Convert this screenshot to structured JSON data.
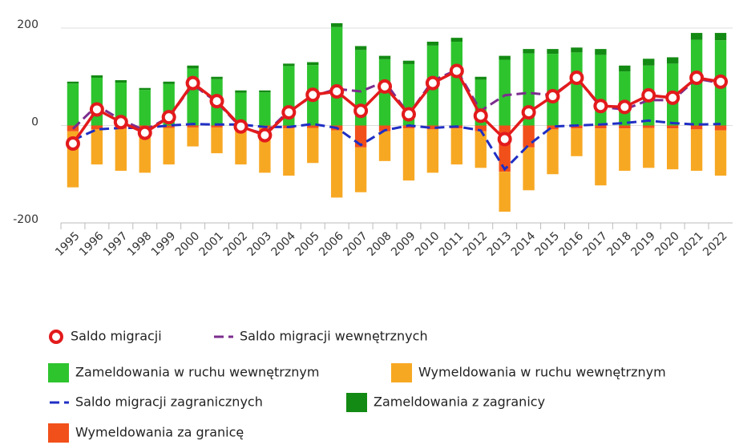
{
  "chart_data": {
    "type": "bar",
    "categories": [
      "1995",
      "1996",
      "1997",
      "1998",
      "1999",
      "2000",
      "2001",
      "2002",
      "2003",
      "2004",
      "2005",
      "2006",
      "2007",
      "2008",
      "2009",
      "2010",
      "2011",
      "2012",
      "2013",
      "2014",
      "2015",
      "2016",
      "2017",
      "2018",
      "2019",
      "2020",
      "2021",
      "2022"
    ],
    "ylim": [
      -200,
      200
    ],
    "yticks": [
      -200,
      0,
      200
    ],
    "grid": true,
    "series": [
      {
        "name": "Saldo migracji",
        "type": "line",
        "marker": "circle",
        "color": "#e31a1c",
        "values": [
          -37,
          33,
          7,
          -15,
          17,
          87,
          50,
          -2,
          -20,
          27,
          63,
          70,
          30,
          80,
          23,
          87,
          112,
          20,
          -28,
          27,
          60,
          98,
          40,
          38,
          62,
          57,
          98,
          90
        ]
      },
      {
        "name": "Saldo migracji wewnętrznych",
        "type": "line",
        "dashed": true,
        "color": "#7b2d8e",
        "values": [
          -7,
          41,
          12,
          -10,
          17,
          84,
          48,
          -4,
          -17,
          30,
          60,
          75,
          70,
          90,
          23,
          92,
          114,
          30,
          62,
          67,
          62,
          98,
          38,
          33,
          52,
          52,
          96,
          87
        ]
      },
      {
        "name": "Zameldowania w ruchu wewnętrznym",
        "type": "bar",
        "color": "#2ec42e",
        "values": [
          86,
          98,
          88,
          73,
          85,
          117,
          95,
          67,
          68,
          122,
          124,
          202,
          155,
          136,
          126,
          164,
          172,
          94,
          135,
          148,
          147,
          150,
          145,
          111,
          123,
          127,
          176,
          175
        ]
      },
      {
        "name": "Wymeldowania w ruchu wewnętrznym",
        "type": "bar",
        "color": "#f7a823",
        "values": [
          -115,
          -72,
          -86,
          -91,
          -75,
          -39,
          -53,
          -76,
          -92,
          -97,
          -72,
          -138,
          -92,
          -61,
          -107,
          -89,
          -74,
          -75,
          -82,
          -88,
          -92,
          -57,
          -117,
          -87,
          -82,
          -84,
          -85,
          -93
        ]
      },
      {
        "name": "Saldo migracji zagranicznych",
        "type": "line",
        "dashed": true,
        "color": "#1f2fc4",
        "values": [
          -30,
          -8,
          -5,
          -5,
          0,
          3,
          2,
          2,
          -3,
          -3,
          3,
          -5,
          -40,
          -10,
          0,
          -5,
          -2,
          -10,
          -90,
          -40,
          -2,
          0,
          2,
          5,
          10,
          5,
          2,
          3
        ]
      },
      {
        "name": "Zameldowania z zagranicy",
        "type": "bar",
        "color": "#138a13",
        "values": [
          4,
          5,
          5,
          4,
          5,
          6,
          5,
          5,
          4,
          5,
          6,
          8,
          8,
          7,
          7,
          8,
          8,
          6,
          8,
          9,
          10,
          10,
          12,
          12,
          14,
          13,
          14,
          15
        ]
      },
      {
        "name": "Wymeldowania za granicę",
        "type": "bar",
        "color": "#f2501a",
        "values": [
          -12,
          -8,
          -7,
          -6,
          -5,
          -4,
          -4,
          -4,
          -5,
          -6,
          -5,
          -10,
          -45,
          -12,
          -6,
          -8,
          -6,
          -12,
          -95,
          -45,
          -8,
          -6,
          -6,
          -6,
          -5,
          -6,
          -8,
          -10
        ]
      }
    ]
  }
}
